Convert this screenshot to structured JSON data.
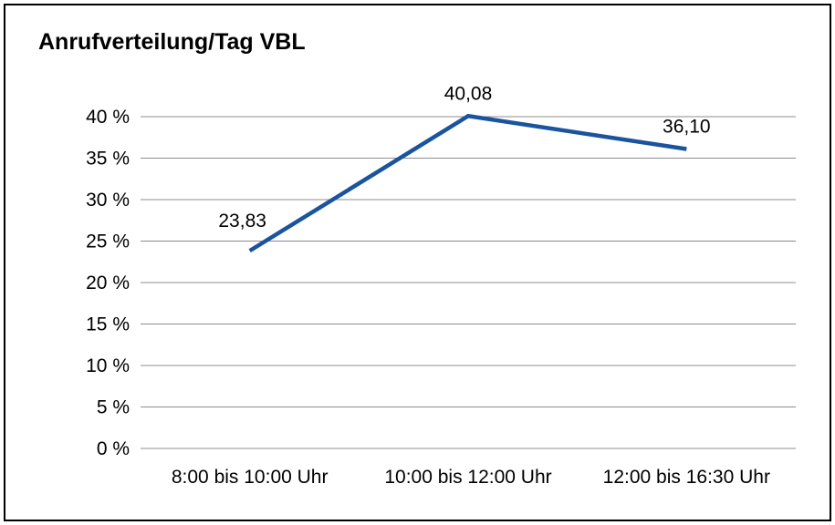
{
  "chart_data": {
    "type": "line",
    "title": "Anrufverteilung/Tag VBL",
    "categories": [
      "8:00 bis 10:00 Uhr",
      "10:00 bis 12:00 Uhr",
      "12:00 bis 16:30 Uhr"
    ],
    "values": [
      23.83,
      40.08,
      36.1
    ],
    "value_labels": [
      "23,83",
      "40,08",
      "36,10"
    ],
    "ylabel": "",
    "xlabel": "",
    "ylim": [
      0,
      40
    ],
    "ytick_step": 5,
    "ytick_suffix": " %",
    "grid": true,
    "legend": "none",
    "line_color": "#1a539e",
    "grid_color": "#8c8c8c",
    "text_color": "#000000"
  }
}
